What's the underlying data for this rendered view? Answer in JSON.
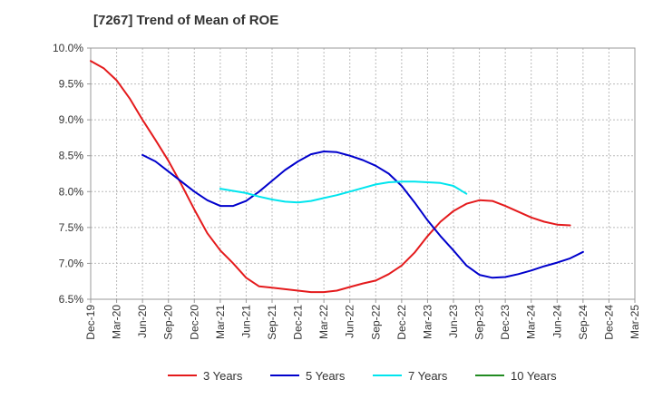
{
  "chart_data": {
    "type": "line",
    "title": "[7267]  Trend of Mean of ROE",
    "xlabel": "",
    "ylabel": "",
    "ylim": [
      6.5,
      10.0
    ],
    "yticks": [
      "6.5%",
      "7.0%",
      "7.5%",
      "8.0%",
      "8.5%",
      "9.0%",
      "9.5%",
      "10.0%"
    ],
    "yvalues": [
      6.5,
      7.0,
      7.5,
      8.0,
      8.5,
      9.0,
      9.5,
      10.0
    ],
    "xticks": [
      "Dec-19",
      "Mar-20",
      "Jun-20",
      "Sep-20",
      "Dec-20",
      "Mar-21",
      "Jun-21",
      "Sep-21",
      "Dec-21",
      "Mar-22",
      "Jun-22",
      "Sep-22",
      "Dec-22",
      "Mar-23",
      "Jun-23",
      "Sep-23",
      "Dec-23",
      "Mar-24",
      "Jun-24",
      "Sep-24",
      "Dec-24",
      "Mar-25"
    ],
    "grid": true,
    "legend_position": "bottom",
    "series": [
      {
        "name": "3 Years",
        "color": "#e41a1c",
        "points": [
          [
            0,
            9.82
          ],
          [
            1,
            9.72
          ],
          [
            2,
            9.55
          ],
          [
            3,
            9.3
          ],
          [
            4,
            9.0
          ],
          [
            5,
            8.72
          ],
          [
            6,
            8.43
          ],
          [
            7,
            8.1
          ],
          [
            8,
            7.75
          ],
          [
            9,
            7.42
          ],
          [
            10,
            7.18
          ],
          [
            11,
            7.0
          ],
          [
            12,
            6.8
          ],
          [
            13,
            6.68
          ],
          [
            14,
            6.66
          ],
          [
            15,
            6.64
          ],
          [
            16,
            6.62
          ],
          [
            17,
            6.6
          ],
          [
            18,
            6.6
          ],
          [
            19,
            6.62
          ],
          [
            20,
            6.67
          ],
          [
            21,
            6.72
          ],
          [
            22,
            6.76
          ],
          [
            23,
            6.85
          ],
          [
            24,
            6.97
          ],
          [
            25,
            7.15
          ],
          [
            26,
            7.38
          ],
          [
            27,
            7.58
          ],
          [
            28,
            7.73
          ],
          [
            29,
            7.83
          ],
          [
            30,
            7.88
          ],
          [
            31,
            7.87
          ],
          [
            32,
            7.8
          ],
          [
            33,
            7.72
          ],
          [
            34,
            7.64
          ],
          [
            35,
            7.58
          ],
          [
            36,
            7.54
          ],
          [
            37,
            7.53
          ]
        ]
      },
      {
        "name": "5 Years",
        "color": "#0000cc",
        "points": [
          [
            4,
            8.51
          ],
          [
            5,
            8.42
          ],
          [
            6,
            8.28
          ],
          [
            7,
            8.14
          ],
          [
            8,
            8.0
          ],
          [
            9,
            7.88
          ],
          [
            10,
            7.8
          ],
          [
            11,
            7.8
          ],
          [
            12,
            7.87
          ],
          [
            13,
            8.0
          ],
          [
            14,
            8.15
          ],
          [
            15,
            8.3
          ],
          [
            16,
            8.42
          ],
          [
            17,
            8.52
          ],
          [
            18,
            8.56
          ],
          [
            19,
            8.55
          ],
          [
            20,
            8.5
          ],
          [
            21,
            8.44
          ],
          [
            22,
            8.36
          ],
          [
            23,
            8.25
          ],
          [
            24,
            8.08
          ],
          [
            25,
            7.85
          ],
          [
            26,
            7.6
          ],
          [
            27,
            7.38
          ],
          [
            28,
            7.18
          ],
          [
            29,
            6.97
          ],
          [
            30,
            6.84
          ],
          [
            31,
            6.8
          ],
          [
            32,
            6.81
          ],
          [
            33,
            6.85
          ],
          [
            34,
            6.9
          ],
          [
            35,
            6.96
          ],
          [
            36,
            7.01
          ],
          [
            37,
            7.07
          ],
          [
            38,
            7.16
          ]
        ]
      },
      {
        "name": "7 Years",
        "color": "#00e5ee",
        "points": [
          [
            10,
            8.04
          ],
          [
            11,
            8.01
          ],
          [
            12,
            7.98
          ],
          [
            13,
            7.93
          ],
          [
            14,
            7.89
          ],
          [
            15,
            7.86
          ],
          [
            16,
            7.85
          ],
          [
            17,
            7.87
          ],
          [
            18,
            7.91
          ],
          [
            19,
            7.95
          ],
          [
            20,
            8.0
          ],
          [
            21,
            8.05
          ],
          [
            22,
            8.1
          ],
          [
            23,
            8.13
          ],
          [
            24,
            8.14
          ],
          [
            25,
            8.14
          ],
          [
            26,
            8.13
          ],
          [
            27,
            8.12
          ],
          [
            28,
            8.08
          ],
          [
            29,
            7.97
          ]
        ]
      },
      {
        "name": "10 Years",
        "color": "#228b22",
        "points": []
      }
    ]
  }
}
